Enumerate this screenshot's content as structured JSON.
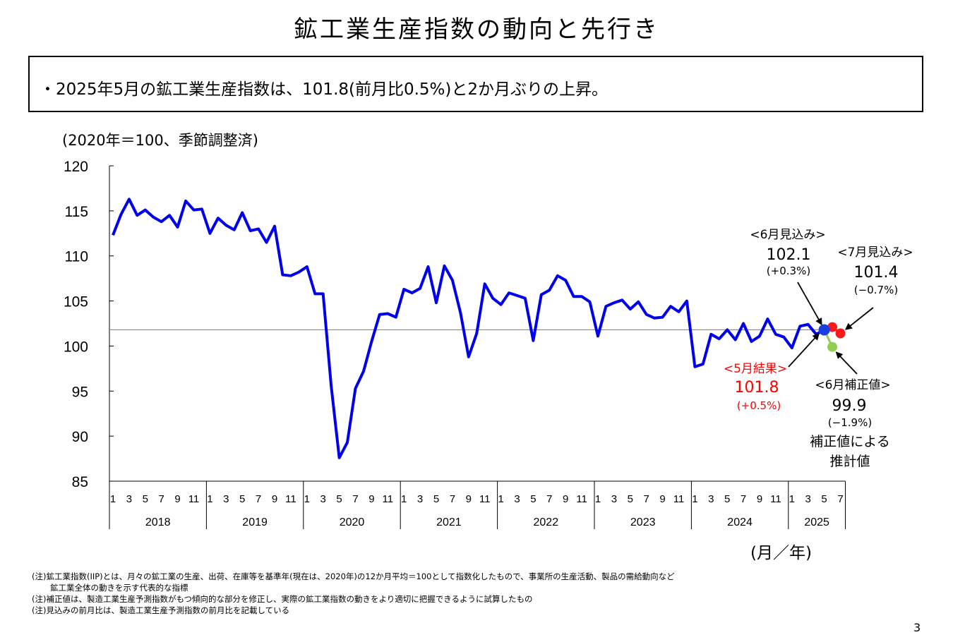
{
  "header": {
    "title": "鉱工業生産指数の動向と先行き"
  },
  "summary": {
    "text": "・2025年5月の鉱工業生産指数は、101.8(前月比0.5%)と2か月ぶりの上昇。"
  },
  "chart_data": {
    "type": "line",
    "unit_label": "(2020年＝100、季節調整済)",
    "xlabel": "(月／年)",
    "ylim": [
      85,
      120
    ],
    "yticks": [
      "120",
      "115",
      "110",
      "105",
      "100",
      "95",
      "90",
      "85"
    ],
    "ytick_values": [
      120,
      115,
      110,
      105,
      100,
      95,
      90,
      85
    ],
    "month_ticks": [
      "1",
      "3",
      "5",
      "7",
      "9",
      "11"
    ],
    "month_ticks_2025": [
      "1",
      "3",
      "5",
      "7"
    ],
    "years": [
      "2018",
      "2019",
      "2020",
      "2021",
      "2022",
      "2023",
      "2024",
      "2025"
    ],
    "reference_line": 101.8,
    "series": [
      {
        "start": "2018-01",
        "values": [
          112.3,
          114.6,
          116.3,
          114.5,
          115.1,
          114.3,
          113.8,
          114.5,
          113.2,
          116.1,
          115.1,
          115.2,
          112.5,
          114.2,
          113.4,
          112.9,
          114.8,
          112.8,
          113.0,
          111.5,
          113.3,
          107.9,
          107.8,
          108.2,
          108.8,
          105.8,
          105.8,
          95.6,
          87.6,
          89.3,
          95.3,
          97.2,
          100.5,
          103.5,
          103.6,
          103.2,
          106.3,
          105.9,
          106.4,
          108.8,
          104.8,
          108.9,
          107.3,
          103.7,
          98.8,
          101.4,
          106.9,
          105.3,
          104.6,
          105.9,
          105.6,
          105.3,
          100.6,
          105.7,
          106.2,
          107.8,
          107.3,
          105.5,
          105.5,
          104.9,
          101.1,
          104.4,
          104.8,
          105.1,
          104.1,
          104.9,
          103.5,
          103.1,
          103.2,
          104.4,
          103.8,
          105.0,
          97.7,
          98.0,
          101.3,
          100.8,
          101.8,
          100.7,
          102.5,
          100.5,
          101.1,
          103.0,
          101.3,
          101.0,
          99.8,
          102.2,
          102.4,
          101.3,
          101.8
        ]
      }
    ],
    "forecasts": {
      "june": {
        "month": "2025-06",
        "value": 102.1,
        "label": "<6月見込み>",
        "value_label": "102.1",
        "change_label": "(+0.3%)"
      },
      "july": {
        "month": "2025-07",
        "value": 101.4,
        "label": "<7月見込み>",
        "value_label": "101.4",
        "change_label": "(−0.7%)"
      },
      "june_corrected": {
        "month": "2025-06",
        "value": 99.9,
        "label": "<6月補正値>",
        "value_label": "99.9",
        "change_label": "(−1.9%)",
        "note_line1": "補正値による",
        "note_line2": "推計値"
      },
      "may_result": {
        "month": "2025-05",
        "value": 101.8,
        "label": "<5月結果>",
        "value_label": "101.8",
        "change_label": "(+0.5%)"
      }
    },
    "colors": {
      "line": "#0000ee",
      "forecast_june": "#1b3fe0",
      "forecast_july": "#ff1a1a",
      "corrected": "#8fd14f",
      "reference": "#888888",
      "result_text": "#ff0000"
    }
  },
  "axis_title": {
    "unit": "(2020年＝100、季節調整済)",
    "x": "(月／年)"
  },
  "notes": [
    "(注)鉱工業指数(IIP)とは、月々の鉱工業の生産、出荷、在庫等を基準年(現在は、2020年)の12か月平均＝100として指数化したもので、事業所の生産活動、製品の需給動向など",
    "鉱工業全体の動きを示す代表的な指標",
    "(注)補正値は、製造工業生産予測指数がもつ傾向的な部分を修正し、実際の鉱工業指数の動きをより適切に把握できるように試算したもの",
    "(注)見込みの前月比は、製造工業生産予測指数の前月比を記載している"
  ],
  "page": {
    "number": "3"
  }
}
